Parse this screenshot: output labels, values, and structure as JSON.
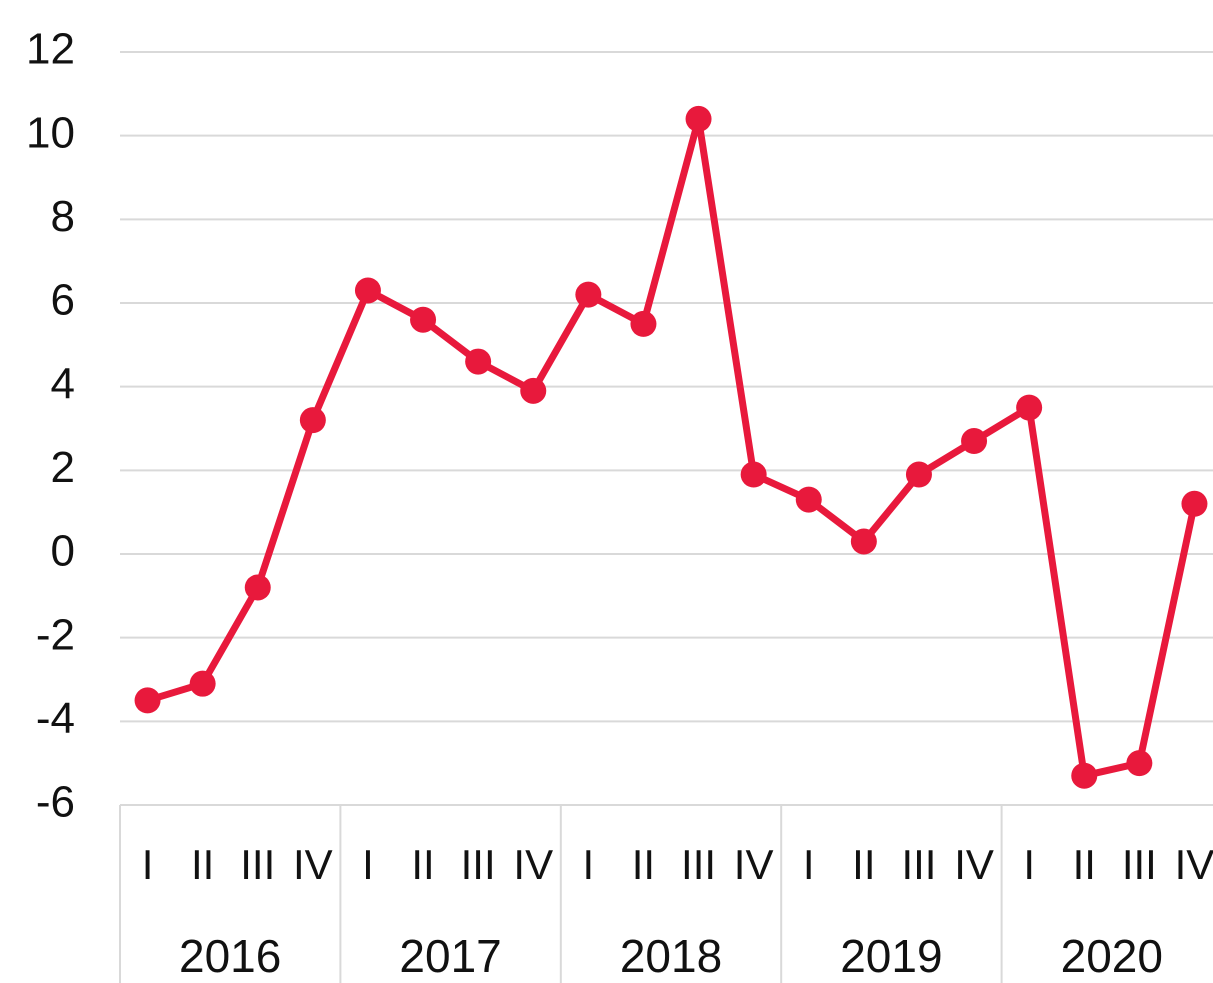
{
  "chart_data": {
    "type": "line",
    "categories": [
      "I",
      "II",
      "III",
      "IV",
      "I",
      "II",
      "III",
      "IV",
      "I",
      "II",
      "III",
      "IV",
      "I",
      "II",
      "III",
      "IV",
      "I",
      "II",
      "III",
      "IV"
    ],
    "years": [
      "2016",
      "2017",
      "2018",
      "2019",
      "2020"
    ],
    "series": [
      {
        "color": "#e8193c",
        "values": [
          -3.5,
          -3.1,
          -0.8,
          3.2,
          6.3,
          5.6,
          4.6,
          3.9,
          6.2,
          5.5,
          10.4,
          1.9,
          1.3,
          0.3,
          1.9,
          2.7,
          3.5,
          -5.3,
          -5.0,
          1.2
        ]
      }
    ],
    "ylim": [
      -6,
      12
    ],
    "yticks": [
      -6,
      -4,
      -2,
      0,
      2,
      4,
      6,
      8,
      10,
      12
    ],
    "grid": true
  }
}
